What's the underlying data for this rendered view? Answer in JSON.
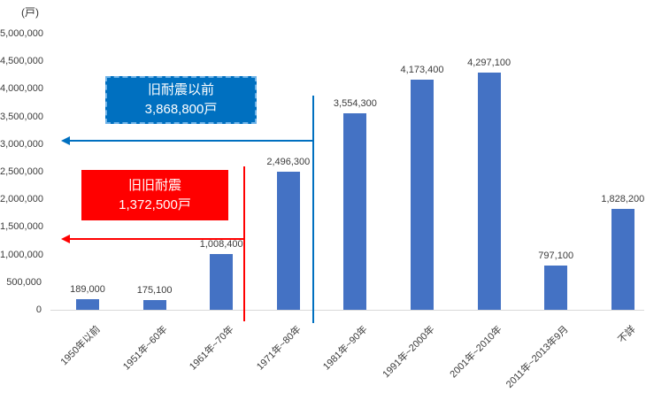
{
  "chart_data": {
    "type": "bar",
    "title": "",
    "unit_label": "(戸)",
    "xlabel": "",
    "ylabel": "",
    "categories": [
      "1950年以前",
      "1951年~60年",
      "1961年~70年",
      "1971年~80年",
      "1981年~90年",
      "1991年~2000年",
      "2001年~2010年",
      "2011年~2013年9月",
      "不詳"
    ],
    "values": [
      189000,
      175100,
      1008400,
      2496300,
      3554300,
      4173400,
      4297100,
      797100,
      1828200
    ],
    "value_labels": [
      "189,000",
      "175,100",
      "1,008,400",
      "2,496,300",
      "3,554,300",
      "4,173,400",
      "4,297,100",
      "797,100",
      "1,828,200"
    ],
    "ylim": [
      0,
      5000000
    ],
    "y_tick_interval": 500000,
    "y_tick_labels": [
      "0",
      "500,000",
      "1,000,000",
      "1,500,000",
      "2,000,000",
      "2,500,000",
      "3,000,000",
      "3,500,000",
      "4,000,000",
      "4,500,000",
      "5,000,000"
    ],
    "grid": false,
    "legend": null,
    "bar_color": "#4472C4",
    "axis_line_color": "#D9D9D9",
    "label_text_color": "#3B3B3B",
    "annotations": [
      {
        "label": "旧耐震以前",
        "value_label": "3,868,800戸",
        "box_color": "#0070C0",
        "box_border": "dashed",
        "text_color": "#FFFFFF",
        "line_color": "#0070C0",
        "pointer": "left-arrow"
      },
      {
        "label": "旧旧耐震",
        "value_label": "1,372,500戸",
        "box_color": "#FF0000",
        "box_border": "none",
        "text_color": "#FFFFFF",
        "line_color": "#FF0000",
        "pointer": "left-arrow"
      }
    ]
  }
}
